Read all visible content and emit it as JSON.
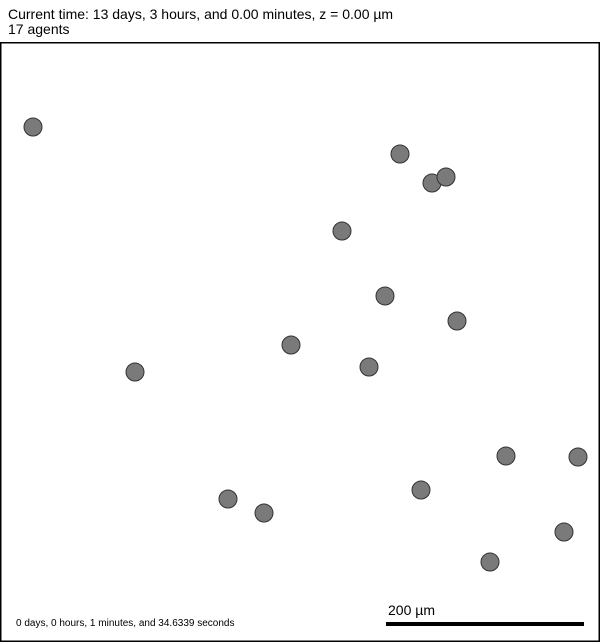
{
  "header": {
    "current_time": "Current time: 13 days, 3 hours, and 0.00 minutes, z = 0.00 µm",
    "agent_count": "17 agents"
  },
  "simulation": {
    "elapsed_wallclock": "0 days, 0 hours, 1 minutes, and 34.6339 seconds",
    "scale_bar_label": "200 µm",
    "agent_color": "#7a7a7a",
    "agent_outline_color": "#333333"
  },
  "agents": [
    {
      "x": -267,
      "y": 215
    },
    {
      "x": 100,
      "y": 188
    },
    {
      "x": 132,
      "y": 159
    },
    {
      "x": 146,
      "y": 165
    },
    {
      "x": 42,
      "y": 111
    },
    {
      "x": 85,
      "y": 46
    },
    {
      "x": 157,
      "y": 21
    },
    {
      "x": -9,
      "y": -3
    },
    {
      "x": 69,
      "y": -25
    },
    {
      "x": -165,
      "y": -30
    },
    {
      "x": 206,
      "y": -114
    },
    {
      "x": 278,
      "y": -115
    },
    {
      "x": 121,
      "y": -148
    },
    {
      "x": -72,
      "y": -157
    },
    {
      "x": -36,
      "y": -171
    },
    {
      "x": 264,
      "y": -190
    },
    {
      "x": 190,
      "y": -220
    }
  ]
}
